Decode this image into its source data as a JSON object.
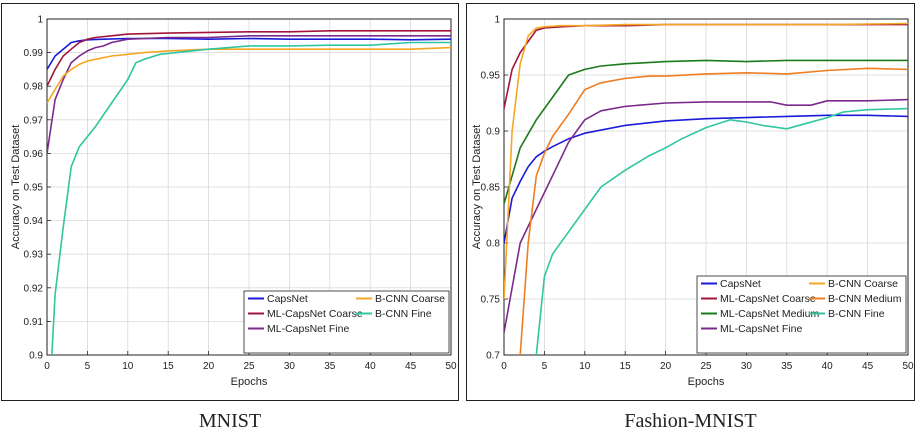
{
  "chart_data": [
    {
      "type": "line",
      "title": "",
      "caption": "MNIST",
      "xlabel": "Epochs",
      "ylabel": "Accuracy on Test Dataset",
      "xlim": [
        0,
        50
      ],
      "ylim": [
        0.9,
        1.0
      ],
      "x_ticks": [
        0,
        5,
        10,
        15,
        20,
        25,
        30,
        35,
        40,
        45,
        50
      ],
      "y_ticks": [
        0.9,
        0.91,
        0.92,
        0.93,
        0.94,
        0.95,
        0.96,
        0.97,
        0.98,
        0.99,
        1
      ],
      "y_tick_labels": [
        "0.9",
        "0.91",
        "0.92",
        "0.93",
        "0.94",
        "0.95",
        "0.96",
        "0.97",
        "0.98",
        "0.99",
        "1"
      ],
      "grid": true,
      "legend_position": "bottom-right",
      "legend_columns": 2,
      "series": [
        {
          "name": "CapsNet",
          "color": "#1a1adb",
          "x": [
            0,
            1,
            2,
            3,
            4,
            5,
            7,
            10,
            15,
            20,
            25,
            30,
            35,
            40,
            45,
            50
          ],
          "values": [
            0.985,
            0.989,
            0.991,
            0.993,
            0.9935,
            0.9938,
            0.994,
            0.9942,
            0.9942,
            0.994,
            0.9942,
            0.994,
            0.994,
            0.994,
            0.9938,
            0.994
          ]
        },
        {
          "name": "ML-CapsNet Coarse",
          "color": "#a3143c",
          "x": [
            0,
            1,
            2,
            3,
            4,
            5,
            6,
            8,
            10,
            15,
            20,
            25,
            30,
            35,
            40,
            45,
            50
          ],
          "values": [
            0.98,
            0.985,
            0.989,
            0.991,
            0.993,
            0.994,
            0.9945,
            0.995,
            0.9955,
            0.9958,
            0.996,
            0.9962,
            0.9962,
            0.9965,
            0.9965,
            0.9965,
            0.9965
          ]
        },
        {
          "name": "ML-CapsNet Fine",
          "color": "#7b2a8c",
          "x": [
            0,
            1,
            2,
            3,
            4,
            5,
            6,
            7,
            8,
            10,
            15,
            20,
            25,
            30,
            35,
            40,
            45,
            50
          ],
          "values": [
            0.96,
            0.976,
            0.982,
            0.987,
            0.989,
            0.9905,
            0.9915,
            0.992,
            0.993,
            0.994,
            0.9945,
            0.9945,
            0.995,
            0.995,
            0.995,
            0.995,
            0.995,
            0.995
          ]
        },
        {
          "name": "B-CNN Coarse",
          "color": "#f5a623",
          "x": [
            0,
            1,
            2,
            3,
            4,
            5,
            6,
            8,
            10,
            12,
            15,
            20,
            25,
            30,
            35,
            40,
            45,
            50
          ],
          "values": [
            0.975,
            0.979,
            0.983,
            0.985,
            0.9865,
            0.9875,
            0.988,
            0.989,
            0.9895,
            0.99,
            0.9905,
            0.991,
            0.991,
            0.991,
            0.991,
            0.991,
            0.991,
            0.9915
          ]
        },
        {
          "name": "B-CNN Fine",
          "color": "#2fc6a0",
          "x": [
            0.6,
            1,
            2,
            3,
            4,
            5,
            6,
            8,
            10,
            11,
            12,
            14,
            16,
            20,
            25,
            30,
            35,
            40,
            45,
            50
          ],
          "values": [
            0.9,
            0.918,
            0.938,
            0.956,
            0.962,
            0.965,
            0.968,
            0.975,
            0.982,
            0.987,
            0.988,
            0.9895,
            0.99,
            0.991,
            0.992,
            0.992,
            0.9922,
            0.9922,
            0.993,
            0.993
          ]
        }
      ]
    },
    {
      "type": "line",
      "title": "",
      "caption": "Fashion-MNIST",
      "xlabel": "Epochs",
      "ylabel": "Accuracy on Test Dataset",
      "xlim": [
        0,
        50
      ],
      "ylim": [
        0.7,
        1.0
      ],
      "x_ticks": [
        0,
        5,
        10,
        15,
        20,
        25,
        30,
        35,
        40,
        45,
        50
      ],
      "y_ticks": [
        0.7,
        0.75,
        0.8,
        0.85,
        0.9,
        0.95,
        1
      ],
      "y_tick_labels": [
        "0.7",
        "0.75",
        "0.8",
        "0.85",
        "0.9",
        "0.95",
        "1"
      ],
      "grid": true,
      "legend_position": "bottom-right",
      "legend_columns": 2,
      "series": [
        {
          "name": "CapsNet",
          "color": "#1a1adb",
          "x": [
            0,
            1,
            2,
            3,
            4,
            5,
            6,
            8,
            10,
            15,
            20,
            25,
            30,
            35,
            40,
            45,
            50
          ],
          "values": [
            0.8,
            0.84,
            0.855,
            0.868,
            0.877,
            0.882,
            0.886,
            0.893,
            0.898,
            0.905,
            0.909,
            0.911,
            0.912,
            0.913,
            0.914,
            0.914,
            0.913
          ]
        },
        {
          "name": "ML-CapsNet Coarse",
          "color": "#a3143c",
          "x": [
            0,
            1,
            2,
            3,
            4,
            5,
            7,
            10,
            15,
            20,
            30,
            40,
            50
          ],
          "values": [
            0.92,
            0.955,
            0.97,
            0.98,
            0.99,
            0.992,
            0.993,
            0.994,
            0.994,
            0.995,
            0.995,
            0.995,
            0.995
          ]
        },
        {
          "name": "ML-CapsNet Medium",
          "color": "#1b7a1b",
          "x": [
            0,
            2,
            4,
            6,
            8,
            10,
            12,
            15,
            20,
            25,
            30,
            35,
            40,
            45,
            50
          ],
          "values": [
            0.835,
            0.885,
            0.91,
            0.93,
            0.95,
            0.955,
            0.958,
            0.96,
            0.962,
            0.963,
            0.962,
            0.963,
            0.963,
            0.963,
            0.963
          ]
        },
        {
          "name": "ML-CapsNet Fine",
          "color": "#7b2a8c",
          "x": [
            0,
            2,
            4,
            6,
            8,
            10,
            12,
            15,
            20,
            25,
            30,
            33,
            35,
            38,
            40,
            45,
            50
          ],
          "values": [
            0.72,
            0.8,
            0.83,
            0.86,
            0.89,
            0.91,
            0.918,
            0.922,
            0.925,
            0.926,
            0.926,
            0.926,
            0.923,
            0.923,
            0.927,
            0.927,
            0.928
          ]
        },
        {
          "name": "B-CNN Coarse",
          "color": "#f5a623",
          "x": [
            0,
            1,
            2,
            3,
            4,
            5,
            7,
            10,
            15,
            20,
            30,
            40,
            50
          ],
          "values": [
            0.75,
            0.9,
            0.96,
            0.985,
            0.992,
            0.993,
            0.994,
            0.994,
            0.995,
            0.995,
            0.995,
            0.995,
            0.996
          ]
        },
        {
          "name": "B-CNN Medium",
          "color": "#ef7d22",
          "x": [
            2,
            3,
            4,
            5,
            6,
            8,
            10,
            12,
            15,
            18,
            20,
            25,
            30,
            35,
            40,
            45,
            50
          ],
          "values": [
            0.7,
            0.8,
            0.86,
            0.88,
            0.895,
            0.915,
            0.937,
            0.943,
            0.947,
            0.949,
            0.949,
            0.951,
            0.952,
            0.951,
            0.954,
            0.956,
            0.955
          ]
        },
        {
          "name": "B-CNN Fine",
          "color": "#2fc6a0",
          "x": [
            4,
            5,
            6,
            8,
            10,
            12,
            15,
            18,
            20,
            22,
            25,
            28,
            30,
            32,
            35,
            37,
            40,
            42,
            45,
            50
          ],
          "values": [
            0.7,
            0.77,
            0.79,
            0.81,
            0.83,
            0.85,
            0.865,
            0.878,
            0.885,
            0.893,
            0.903,
            0.91,
            0.908,
            0.905,
            0.902,
            0.906,
            0.912,
            0.917,
            0.919,
            0.92
          ]
        }
      ]
    }
  ]
}
